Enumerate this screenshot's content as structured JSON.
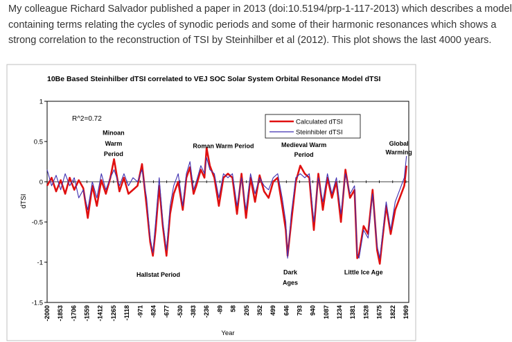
{
  "intro": {
    "line1": "My colleague Richard Salvador published a paper in 2013 (doi:10.5194/prp-1-117-2013) which describes a model",
    "line2": "containing terms relating the cycles of synodic periods and some of their harmonic resonances which shows a",
    "line3": "strong correlation to the reconstruction of TSI by Steinhilber et al (2012). This plot shows the last 4000 years."
  },
  "chart_data": {
    "type": "line",
    "title": "10Be Based Steinhilber dTSI correlated to VEJ SOC Solar System Orbital Resonance Model dTSI",
    "xlabel": "Year",
    "ylabel": "dTSI",
    "xlim": [
      -2000,
      2000
    ],
    "ylim": [
      -1.5,
      1
    ],
    "yticks": [
      "1",
      "0.5",
      "0",
      "-0.5",
      "-1",
      "-1.5"
    ],
    "ytick_values": [
      1,
      0.5,
      0,
      -0.5,
      -1,
      -1.5
    ],
    "xticks": [
      "-2000",
      "-1853",
      "-1706",
      "-1559",
      "-1412",
      "-1265",
      "-1118",
      "-971",
      "-824",
      "-677",
      "-530",
      "-383",
      "-236",
      "-89",
      "58",
      "205",
      "352",
      "499",
      "646",
      "793",
      "940",
      "1087",
      "1234",
      "1381",
      "1528",
      "1675",
      "1822",
      "1969"
    ],
    "xtick_values": [
      -2000,
      -1853,
      -1706,
      -1559,
      -1412,
      -1265,
      -1118,
      -971,
      -824,
      -677,
      -530,
      -383,
      -236,
      -89,
      58,
      205,
      352,
      499,
      646,
      793,
      940,
      1087,
      1234,
      1381,
      1528,
      1675,
      1822,
      1969
    ],
    "stat_label": "R^2=0.72",
    "grid": false,
    "legend_position": "top-right",
    "series": [
      {
        "name": "Calculated dTSI",
        "color": "#e01010",
        "x": [
          -2000,
          -1950,
          -1900,
          -1850,
          -1800,
          -1750,
          -1700,
          -1650,
          -1600,
          -1550,
          -1500,
          -1450,
          -1400,
          -1350,
          -1300,
          -1260,
          -1200,
          -1150,
          -1100,
          -1050,
          -1000,
          -950,
          -900,
          -860,
          -830,
          -800,
          -760,
          -720,
          -680,
          -640,
          -600,
          -550,
          -500,
          -460,
          -420,
          -380,
          -350,
          -300,
          -260,
          -236,
          -200,
          -150,
          -100,
          -50,
          0,
          50,
          100,
          150,
          200,
          250,
          300,
          350,
          400,
          450,
          500,
          550,
          600,
          640,
          660,
          700,
          750,
          800,
          850,
          900,
          950,
          1000,
          1050,
          1100,
          1150,
          1200,
          1250,
          1300,
          1350,
          1400,
          1430,
          1450,
          1500,
          1550,
          1600,
          1650,
          1680,
          1700,
          1750,
          1800,
          1850,
          1900,
          1950,
          1975
        ],
        "y": [
          -0.05,
          0.05,
          -0.12,
          0.02,
          -0.15,
          0.05,
          -0.1,
          0.02,
          -0.08,
          -0.45,
          -0.05,
          -0.3,
          0.02,
          -0.15,
          0.05,
          0.28,
          -0.12,
          0.05,
          -0.15,
          -0.1,
          -0.05,
          0.22,
          -0.3,
          -0.75,
          -0.92,
          -0.6,
          -0.05,
          -0.55,
          -0.92,
          -0.4,
          -0.15,
          0.0,
          -0.35,
          0.05,
          0.18,
          -0.15,
          -0.05,
          0.15,
          0.05,
          0.42,
          0.2,
          0.05,
          -0.3,
          0.05,
          0.1,
          0.05,
          -0.4,
          0.1,
          -0.45,
          0.05,
          -0.25,
          0.08,
          -0.12,
          -0.2,
          0.0,
          0.05,
          -0.3,
          -0.6,
          -0.92,
          -0.5,
          0.0,
          0.2,
          0.1,
          0.05,
          -0.6,
          0.1,
          -0.35,
          0.05,
          -0.2,
          0.0,
          -0.5,
          0.15,
          -0.2,
          -0.1,
          -0.95,
          -0.9,
          -0.55,
          -0.65,
          -0.1,
          -0.85,
          -1.02,
          -0.8,
          -0.3,
          -0.65,
          -0.35,
          -0.2,
          -0.05,
          0.2
        ]
      },
      {
        "name": "Steinhibler dTSI",
        "color": "#3f2fb0",
        "x": [
          -2000,
          -1950,
          -1900,
          -1850,
          -1800,
          -1750,
          -1700,
          -1650,
          -1600,
          -1550,
          -1500,
          -1450,
          -1400,
          -1350,
          -1300,
          -1260,
          -1200,
          -1150,
          -1100,
          -1050,
          -1000,
          -950,
          -900,
          -860,
          -830,
          -800,
          -760,
          -720,
          -680,
          -640,
          -600,
          -550,
          -500,
          -460,
          -420,
          -380,
          -350,
          -300,
          -260,
          -236,
          -200,
          -150,
          -100,
          -50,
          0,
          50,
          100,
          150,
          200,
          250,
          300,
          350,
          400,
          450,
          500,
          550,
          600,
          640,
          660,
          700,
          750,
          800,
          850,
          900,
          950,
          1000,
          1050,
          1100,
          1150,
          1200,
          1250,
          1300,
          1350,
          1400,
          1430,
          1450,
          1500,
          1550,
          1600,
          1650,
          1680,
          1700,
          1750,
          1800,
          1850,
          1900,
          1950,
          1975
        ],
        "y": [
          0.15,
          -0.05,
          0.08,
          -0.1,
          0.1,
          -0.05,
          0.05,
          -0.2,
          -0.1,
          -0.35,
          0.0,
          -0.2,
          0.1,
          -0.1,
          0.05,
          0.15,
          -0.05,
          0.1,
          -0.05,
          0.05,
          0.0,
          0.15,
          -0.2,
          -0.7,
          -0.88,
          -0.5,
          0.05,
          -0.5,
          -0.85,
          -0.3,
          -0.05,
          0.1,
          -0.3,
          0.1,
          0.25,
          -0.1,
          0.0,
          0.2,
          0.1,
          0.3,
          0.15,
          0.1,
          -0.2,
          0.1,
          0.05,
          0.1,
          -0.3,
          0.05,
          -0.35,
          0.1,
          -0.15,
          0.05,
          -0.05,
          -0.1,
          0.05,
          0.1,
          -0.2,
          -0.5,
          -0.95,
          -0.4,
          0.05,
          0.1,
          0.05,
          0.1,
          -0.5,
          0.05,
          -0.25,
          0.1,
          -0.15,
          0.05,
          -0.4,
          0.1,
          -0.15,
          -0.05,
          -0.9,
          -0.95,
          -0.6,
          -0.7,
          -0.15,
          -0.8,
          -0.95,
          -0.75,
          -0.25,
          -0.6,
          -0.25,
          -0.1,
          0.05,
          0.32
        ]
      }
    ],
    "annotations": [
      {
        "text": "Minoan",
        "x": -1265,
        "y": 0.58
      },
      {
        "text": "Warm",
        "x": -1265,
        "y": 0.45
      },
      {
        "text": "Period",
        "x": -1265,
        "y": 0.32
      },
      {
        "text": "Hallstat Period",
        "x": -770,
        "y": -1.18
      },
      {
        "text": "Roman Warm Period",
        "x": -50,
        "y": 0.42
      },
      {
        "text": "Medieval Warm",
        "x": 840,
        "y": 0.43
      },
      {
        "text": "Period",
        "x": 840,
        "y": 0.31
      },
      {
        "text": "Dark",
        "x": 690,
        "y": -1.15
      },
      {
        "text": "Ages",
        "x": 690,
        "y": -1.28
      },
      {
        "text": "Little Ice Age",
        "x": 1500,
        "y": -1.15
      },
      {
        "text": "Global",
        "x": 1890,
        "y": 0.45
      },
      {
        "text": "Warming",
        "x": 1890,
        "y": 0.34
      }
    ]
  }
}
